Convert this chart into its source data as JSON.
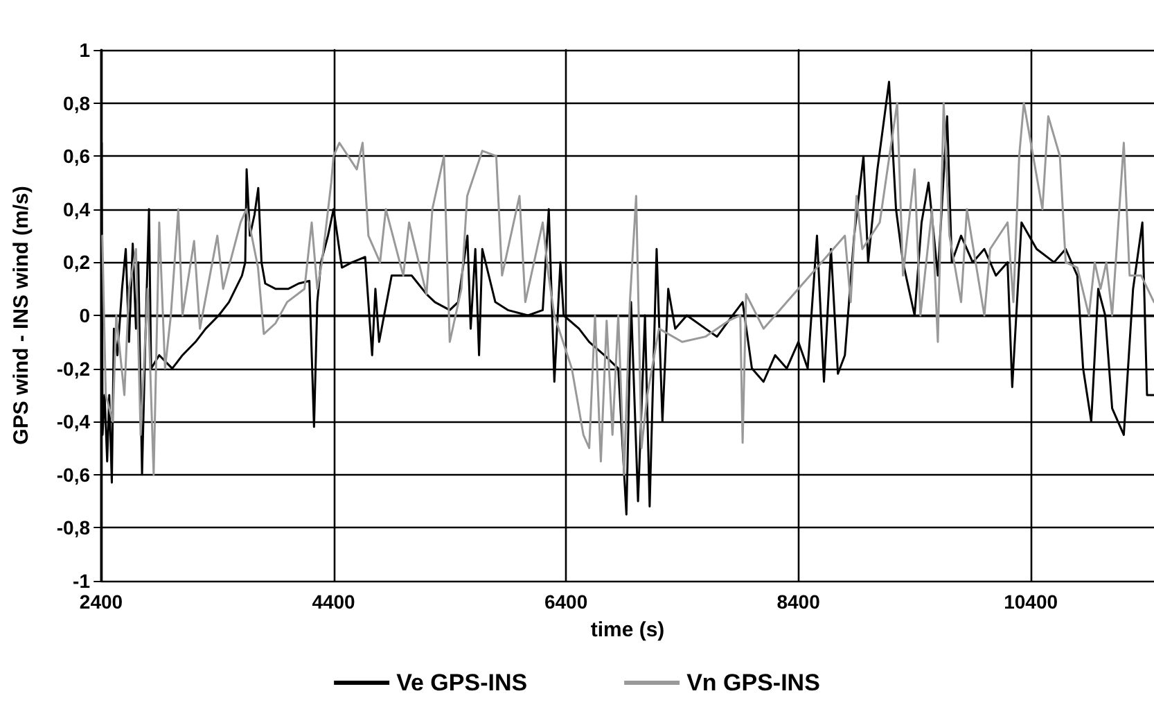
{
  "chart_data": {
    "type": "line",
    "xlabel": "time (s)",
    "ylabel": "GPS wind - INS wind (m/s)",
    "xlim": [
      2400,
      11460
    ],
    "xticks": [
      2400,
      4400,
      6400,
      8400,
      10400
    ],
    "ylim": [
      -1,
      1
    ],
    "yticks": [
      -1,
      {
        "value": -0.8,
        "label": "-0,8"
      },
      {
        "value": -0.6,
        "label": "-0,6"
      },
      {
        "value": -0.4,
        "label": "-0,4"
      },
      {
        "value": -0.2,
        "label": "-0,2"
      },
      0,
      {
        "value": 0.2,
        "label": "0,2"
      },
      {
        "value": 0.4,
        "label": "0,4"
      },
      {
        "value": 0.6,
        "label": "0,6"
      },
      {
        "value": 0.8,
        "label": "0,8"
      },
      1
    ],
    "grid": true,
    "legend": "bottom",
    "marker": "none",
    "line_style": "solid",
    "series": [
      {
        "name": "Ve GPS-INS",
        "color": "#000000",
        "x": [
          2405,
          2412,
          2430,
          2452,
          2470,
          2492,
          2510,
          2540,
          2580,
          2612,
          2640,
          2672,
          2700,
          2720,
          2752,
          2780,
          2812,
          2830,
          2900,
          3012,
          3100,
          3212,
          3300,
          3412,
          3500,
          3612,
          3640,
          3652,
          3680,
          3720,
          3752,
          3780,
          3812,
          3900,
          4012,
          4100,
          4192,
          4232,
          4260,
          4292,
          4352,
          4400,
          4472,
          4560,
          4672,
          4732,
          4760,
          4792,
          4900,
          5072,
          5200,
          5272,
          5400,
          5472,
          5552,
          5580,
          5620,
          5652,
          5680,
          5792,
          5900,
          6072,
          6200,
          6252,
          6300,
          6352,
          6380,
          6512,
          6600,
          6730,
          6850,
          6920,
          6960,
          7020,
          7080,
          7120,
          7180,
          7230,
          7280,
          7340,
          7440,
          7600,
          7700,
          7800,
          7920,
          8000,
          8100,
          8200,
          8300,
          8400,
          8480,
          8560,
          8620,
          8680,
          8740,
          8800,
          8880,
          8960,
          9000,
          9080,
          9180,
          9240,
          9300,
          9400,
          9460,
          9520,
          9600,
          9680,
          9720,
          9800,
          9900,
          10000,
          10100,
          10200,
          10240,
          10320,
          10450,
          10600,
          10700,
          10800,
          10850,
          10920,
          10980,
          11040,
          11100,
          11200,
          11280,
          11360,
          11400,
          11460
        ],
        "values": [
          0.65,
          -0.45,
          -0.3,
          -0.55,
          -0.3,
          -0.63,
          -0.05,
          -0.15,
          0.1,
          0.25,
          -0.1,
          0.27,
          -0.05,
          0.2,
          -0.6,
          -0.1,
          0.4,
          -0.2,
          -0.15,
          -0.2,
          -0.15,
          -0.1,
          -0.05,
          0.0,
          0.05,
          0.15,
          0.2,
          0.55,
          0.3,
          0.38,
          0.48,
          0.2,
          0.12,
          0.1,
          0.1,
          0.12,
          0.13,
          -0.42,
          0.05,
          0.2,
          0.3,
          0.4,
          0.18,
          0.2,
          0.22,
          -0.15,
          0.1,
          -0.1,
          0.15,
          0.15,
          0.08,
          0.05,
          0.02,
          0.05,
          0.3,
          -0.05,
          0.25,
          -0.15,
          0.25,
          0.05,
          0.02,
          0.0,
          0.02,
          0.4,
          -0.25,
          0.2,
          0.0,
          -0.05,
          -0.1,
          -0.15,
          -0.2,
          -0.75,
          0.05,
          -0.7,
          0.0,
          -0.72,
          0.25,
          -0.4,
          0.1,
          -0.05,
          0.0,
          -0.05,
          -0.08,
          -0.02,
          0.05,
          -0.2,
          -0.25,
          -0.15,
          -0.2,
          -0.1,
          -0.2,
          0.3,
          -0.25,
          0.25,
          -0.22,
          -0.15,
          0.3,
          0.6,
          0.2,
          0.55,
          0.88,
          0.4,
          0.2,
          0.0,
          0.35,
          0.5,
          0.15,
          0.75,
          0.2,
          0.3,
          0.2,
          0.25,
          0.15,
          0.2,
          -0.27,
          0.35,
          0.25,
          0.2,
          0.25,
          0.15,
          -0.2,
          -0.4,
          0.1,
          0.0,
          -0.35,
          -0.45,
          0.1,
          0.35,
          -0.3,
          -0.3
        ]
      },
      {
        "name": "Vn GPS-INS",
        "color": "#999999",
        "x": [
          2410,
          2440,
          2500,
          2530,
          2600,
          2640,
          2700,
          2740,
          2800,
          2852,
          2900,
          2950,
          3000,
          3064,
          3100,
          3200,
          3250,
          3400,
          3450,
          3600,
          3650,
          3750,
          3800,
          3900,
          4000,
          4150,
          4212,
          4260,
          4300,
          4380,
          4400,
          4450,
          4600,
          4650,
          4700,
          4800,
          4850,
          5000,
          5050,
          5200,
          5250,
          5350,
          5400,
          5500,
          5550,
          5680,
          5800,
          5850,
          6000,
          6050,
          6200,
          6250,
          6300,
          6450,
          6550,
          6600,
          6650,
          6700,
          6750,
          6800,
          6850,
          6900,
          6950,
          7004,
          7050,
          7100,
          7200,
          7400,
          7600,
          7800,
          7900,
          7920,
          7950,
          8100,
          8300,
          8500,
          8700,
          8800,
          8850,
          8900,
          8950,
          9100,
          9250,
          9300,
          9400,
          9450,
          9550,
          9600,
          9650,
          9700,
          9800,
          9850,
          10000,
          10050,
          10200,
          10250,
          10300,
          10340,
          10500,
          10550,
          10650,
          10700,
          10800,
          10900,
          10950,
          11000,
          11050,
          11100,
          11200,
          11250,
          11350,
          11460
        ],
        "values": [
          0.3,
          -0.3,
          -0.4,
          0.0,
          -0.3,
          0.1,
          0.25,
          -0.45,
          0.1,
          -0.6,
          0.35,
          -0.2,
          0.0,
          0.4,
          0.0,
          0.28,
          -0.05,
          0.3,
          0.1,
          0.35,
          0.4,
          0.18,
          -0.07,
          -0.03,
          0.05,
          0.1,
          0.35,
          0.1,
          0.2,
          0.5,
          0.6,
          0.65,
          0.55,
          0.65,
          0.3,
          0.2,
          0.4,
          0.15,
          0.35,
          0.08,
          0.4,
          0.6,
          -0.1,
          0.1,
          0.45,
          0.62,
          0.6,
          0.15,
          0.45,
          0.05,
          0.35,
          0.15,
          0.0,
          -0.2,
          -0.45,
          -0.5,
          0.0,
          -0.55,
          -0.02,
          -0.45,
          0.0,
          -0.6,
          0.05,
          0.45,
          -0.5,
          -0.3,
          -0.05,
          -0.1,
          -0.08,
          -0.02,
          0.0,
          -0.48,
          0.08,
          -0.05,
          0.05,
          0.15,
          0.25,
          0.3,
          0.05,
          0.45,
          0.25,
          0.35,
          0.8,
          0.15,
          0.55,
          0.0,
          0.4,
          -0.1,
          0.8,
          0.3,
          0.05,
          0.4,
          0.0,
          0.25,
          0.35,
          0.05,
          0.6,
          0.8,
          0.4,
          0.75,
          0.6,
          0.2,
          0.18,
          0.0,
          0.2,
          0.1,
          0.2,
          0.0,
          0.65,
          0.15,
          0.15,
          0.05
        ]
      }
    ]
  }
}
